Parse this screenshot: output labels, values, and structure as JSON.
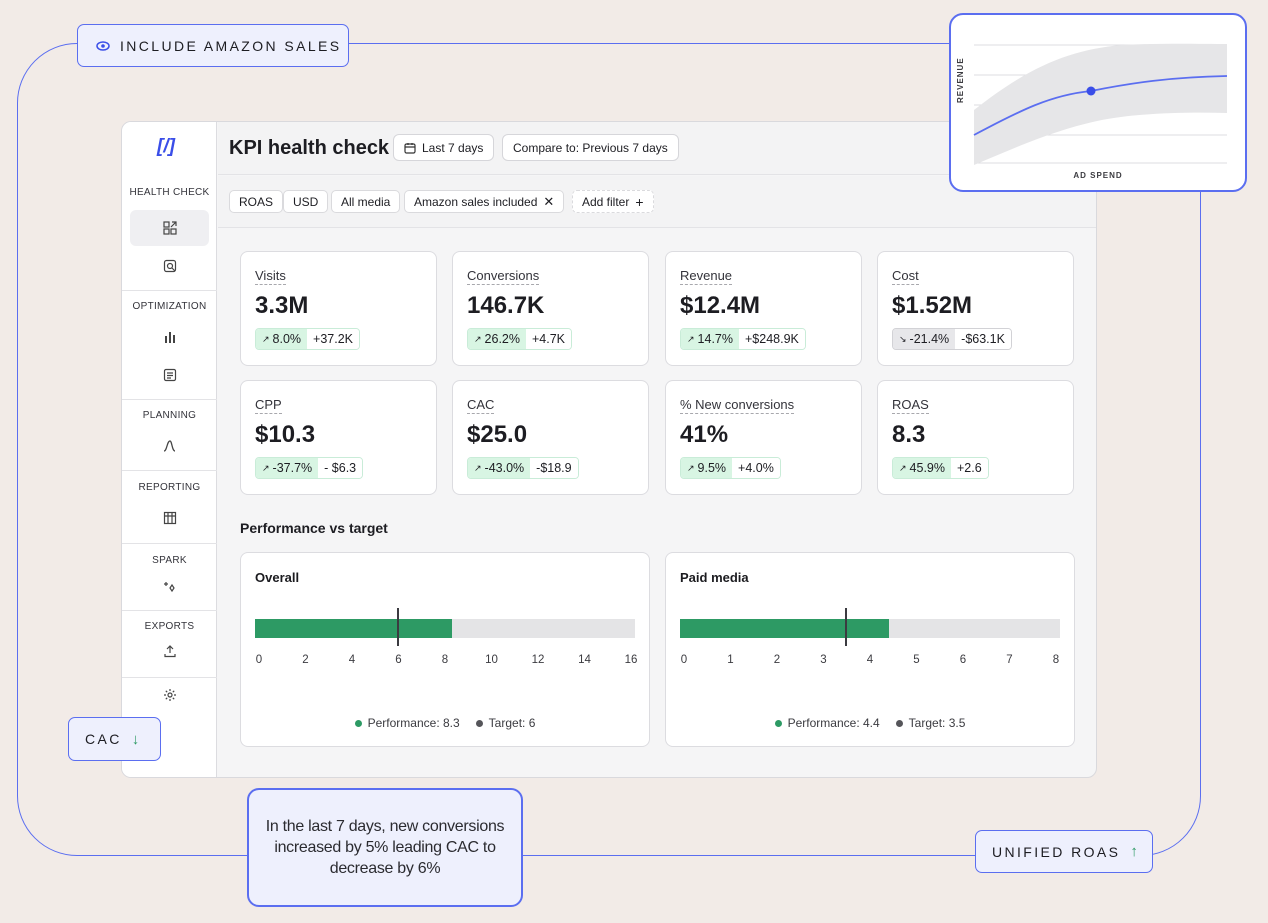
{
  "tags": {
    "amazon": "INCLUDE AMAZON SALES",
    "cac": "CAC",
    "unified": "UNIFIED ROAS"
  },
  "callout": "In the last 7 days, new conversions increased by 5% leading  CAC to decrease by 6%",
  "mini_chart": {
    "xlabel": "AD SPEND",
    "ylabel": "REVENUE"
  },
  "sidebar": {
    "sections": [
      "HEALTH CHECK",
      "OPTIMIZATION",
      "PLANNING",
      "REPORTING",
      "SPARK",
      "EXPORTS"
    ],
    "icons": [
      "dashboard-icon",
      "search-report-icon",
      "bar-chart-icon",
      "table-report-icon",
      "curve-icon",
      "grid-table-icon",
      "sparkle-icon",
      "upload-icon",
      "gear-icon"
    ]
  },
  "header": {
    "title": "KPI health check",
    "date_range": "Last 7 days",
    "compare": "Compare to: Previous 7 days"
  },
  "filters": {
    "roas": "ROAS",
    "currency": "USD",
    "media": "All media",
    "amazon": "Amazon sales included",
    "add": "Add filter"
  },
  "kpis": [
    {
      "label": "Visits",
      "value": "3.3M",
      "pct": "8.0%",
      "abs": "+37.2K",
      "trend": "up"
    },
    {
      "label": "Conversions",
      "value": "146.7K",
      "pct": "26.2%",
      "abs": "+4.7K",
      "trend": "up"
    },
    {
      "label": "Revenue",
      "value": "$12.4M",
      "pct": "14.7%",
      "abs": "+$248.9K",
      "trend": "up"
    },
    {
      "label": "Cost",
      "value": "$1.52M",
      "pct": "-21.4%",
      "abs": "-$63.1K",
      "trend": "down"
    },
    {
      "label": "CPP",
      "value": "$10.3",
      "pct": "-37.7%",
      "abs": "- $6.3",
      "trend": "up"
    },
    {
      "label": "CAC",
      "value": "$25.0",
      "pct": "-43.0%",
      "abs": "-$18.9",
      "trend": "up"
    },
    {
      "label": "% New conversions",
      "value": "41%",
      "pct": "9.5%",
      "abs": "+4.0%",
      "trend": "up"
    },
    {
      "label": "ROAS",
      "value": "8.3",
      "pct": "45.9%",
      "abs": "+2.6",
      "trend": "up"
    }
  ],
  "performance": {
    "title": "Performance vs target",
    "overall": {
      "title": "Overall",
      "performance": 8.3,
      "target": 6,
      "max": 16,
      "ticks": [
        "0",
        "2",
        "4",
        "6",
        "8",
        "10",
        "12",
        "14",
        "16"
      ],
      "perf_label": "Performance: 8.3",
      "target_label": "Target: 6"
    },
    "paid": {
      "title": "Paid media",
      "performance": 4.4,
      "target": 3.5,
      "max": 8,
      "ticks": [
        "0",
        "1",
        "2",
        "3",
        "4",
        "5",
        "6",
        "7",
        "8"
      ],
      "perf_label": "Performance: 4.4",
      "target_label": "Target: 3.5"
    }
  },
  "colors": {
    "accent": "#5b6ef0",
    "performance": "#2d9a64",
    "positive_bg": "#d8f5e3",
    "target": "#3b3b40"
  }
}
